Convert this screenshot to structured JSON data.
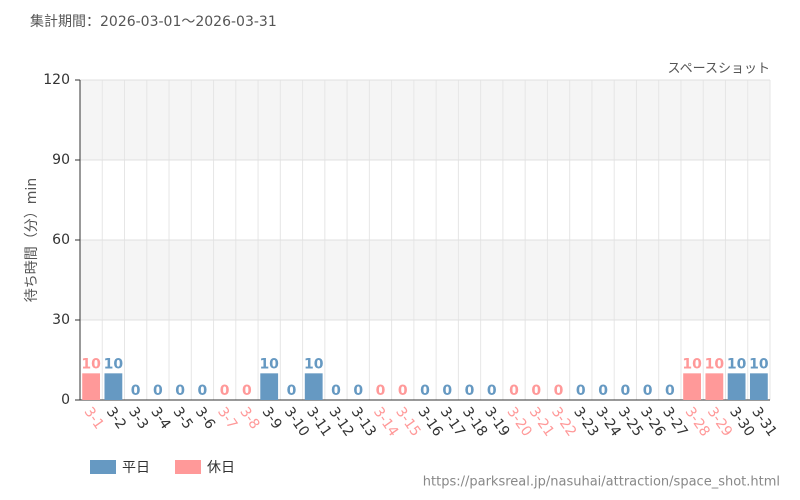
{
  "chart_data": {
    "type": "bar",
    "title": "集計期間：2026-03-01～2026-03-31",
    "subtitle": "スペースショット",
    "y_label": "待ち時間（分）min",
    "source": "https://parksreal.jp/nasuhai/attraction/space_shot.html",
    "categories": [
      "3-1",
      "3-2",
      "3-3",
      "3-4",
      "3-5",
      "3-6",
      "3-7",
      "3-8",
      "3-9",
      "3-10",
      "3-11",
      "3-12",
      "3-13",
      "3-14",
      "3-15",
      "3-16",
      "3-17",
      "3-18",
      "3-19",
      "3-20",
      "3-21",
      "3-22",
      "3-23",
      "3-24",
      "3-25",
      "3-26",
      "3-27",
      "3-28",
      "3-29",
      "3-30",
      "3-31"
    ],
    "series": [
      {
        "name": "平日",
        "color": "#6699c2",
        "values": [
          null,
          10,
          0,
          0,
          0,
          0,
          null,
          null,
          10,
          0,
          10,
          0,
          0,
          null,
          null,
          0,
          0,
          0,
          0,
          null,
          null,
          null,
          0,
          0,
          0,
          0,
          0,
          null,
          null,
          10,
          10
        ]
      },
      {
        "name": "休日",
        "color": "#ff9999",
        "values": [
          10,
          null,
          null,
          null,
          null,
          null,
          0,
          0,
          null,
          null,
          null,
          null,
          null,
          0,
          0,
          null,
          null,
          null,
          null,
          0,
          0,
          0,
          null,
          null,
          null,
          null,
          null,
          10,
          10,
          null,
          null
        ]
      }
    ],
    "ylim": [
      0,
      120
    ],
    "yticks": [
      0,
      30,
      60,
      90,
      120
    ],
    "grid": true
  }
}
